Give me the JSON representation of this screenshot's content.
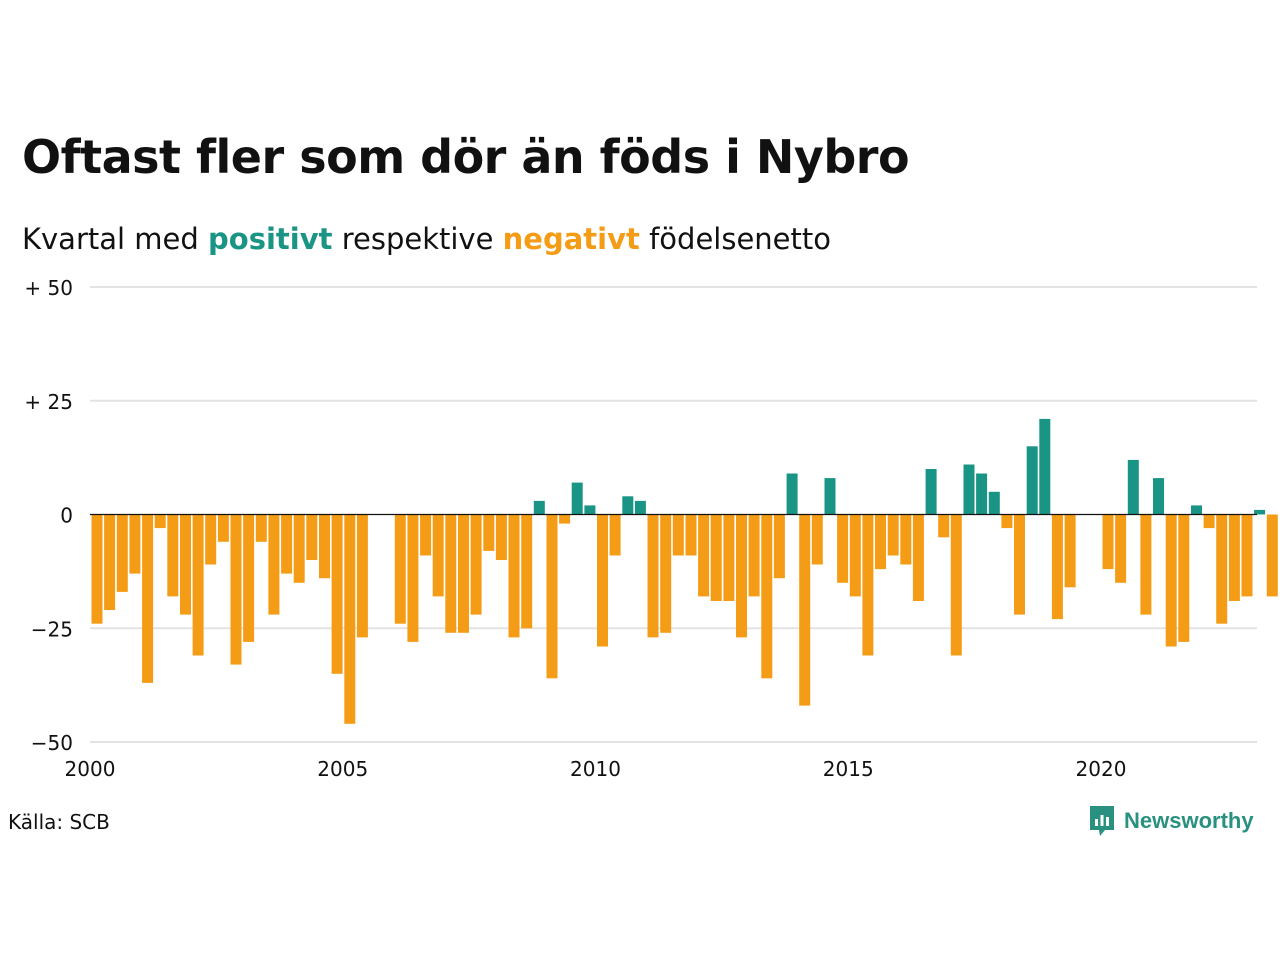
{
  "title": "Oftast fler som dör än föds i Nybro",
  "subtitle": {
    "prefix": "Kvartal med ",
    "positive": "positivt",
    "middle": " respektive ",
    "negative": "negativt",
    "suffix": " födelsenetto"
  },
  "source": "Källa: SCB",
  "brand": "Newsworthy",
  "colors": {
    "positive": "#1a9485",
    "negative": "#f59c16",
    "grid": "#e3e3e3",
    "brand": "#2a9080"
  },
  "chart_data": {
    "type": "bar",
    "x_start": 2000.0,
    "x_step": 0.25,
    "xlim": [
      2000,
      2023.2
    ],
    "ylim": [
      -50,
      50
    ],
    "yticks": [
      {
        "value": 50,
        "label": "+ 50"
      },
      {
        "value": 25,
        "label": "+ 25"
      },
      {
        "value": 0,
        "label": "0"
      },
      {
        "value": -25,
        "label": "−25"
      },
      {
        "value": -50,
        "label": "−50"
      }
    ],
    "xticks": [
      {
        "value": 2000,
        "label": "2000"
      },
      {
        "value": 2005,
        "label": "2005"
      },
      {
        "value": 2010,
        "label": "2010"
      },
      {
        "value": 2015,
        "label": "2015"
      },
      {
        "value": 2020,
        "label": "2020"
      }
    ],
    "grid": true,
    "values": [
      -24,
      -21,
      -17,
      -13,
      -37,
      -3,
      -18,
      -22,
      -31,
      -11,
      -6,
      -33,
      -28,
      -6,
      -22,
      -13,
      -15,
      -10,
      -14,
      -35,
      -46,
      -27,
      0,
      0,
      -24,
      -28,
      -9,
      -18,
      -26,
      -26,
      -22,
      -8,
      -10,
      -27,
      -25,
      3,
      -36,
      -2,
      7,
      2,
      -29,
      -9,
      4,
      3,
      -27,
      -26,
      -9,
      -9,
      -18,
      -19,
      -19,
      -27,
      -18,
      -36,
      -14,
      9,
      -42,
      -11,
      8,
      -15,
      -18,
      -31,
      -12,
      -9,
      -11,
      -19,
      10,
      -5,
      -31,
      11,
      9,
      5,
      -3,
      -22,
      15,
      21,
      -23,
      -16,
      0,
      0,
      -12,
      -15,
      12,
      -22,
      8,
      -29,
      -28,
      2,
      -3,
      -24,
      -19,
      -18,
      1,
      -18
    ]
  }
}
